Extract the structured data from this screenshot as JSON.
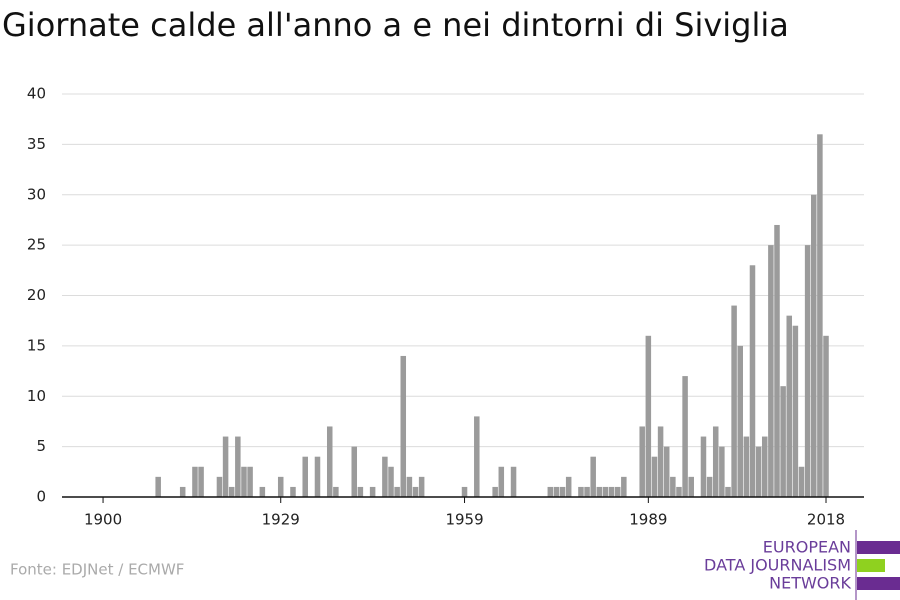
{
  "chart_data": {
    "type": "bar",
    "title": "Giornate calde all'anno a e nei dintorni di Siviglia",
    "source": "Fonte: EDJNet / ECMWF",
    "logo": [
      "EUROPEAN",
      "DATA JOURNALISM",
      "NETWORK"
    ],
    "color": "#9b9b9b",
    "x": [
      1909,
      1913,
      1915,
      1916,
      1919,
      1920,
      1921,
      1922,
      1923,
      1924,
      1926,
      1929,
      1931,
      1933,
      1935,
      1937,
      1938,
      1941,
      1942,
      1944,
      1946,
      1947,
      1948,
      1949,
      1950,
      1951,
      1952,
      1959,
      1961,
      1964,
      1965,
      1967,
      1973,
      1974,
      1975,
      1976,
      1978,
      1979,
      1980,
      1981,
      1982,
      1983,
      1984,
      1985,
      1988,
      1989,
      1990,
      1991,
      1992,
      1993,
      1994,
      1995,
      1996,
      1998,
      1999,
      2000,
      2001,
      2002,
      2003,
      2004,
      2005,
      2006,
      2007,
      2008,
      2009,
      2010,
      2011,
      2012,
      2013,
      2014,
      2015,
      2016,
      2017,
      2018
    ],
    "values": [
      2,
      1,
      3,
      3,
      2,
      6,
      1,
      6,
      3,
      3,
      1,
      2,
      1,
      4,
      4,
      7,
      1,
      5,
      1,
      1,
      4,
      3,
      1,
      14,
      2,
      1,
      2,
      1,
      8,
      1,
      3,
      3,
      1,
      1,
      1,
      2,
      1,
      1,
      4,
      1,
      1,
      1,
      1,
      2,
      7,
      16,
      4,
      7,
      5,
      2,
      1,
      12,
      2,
      6,
      2,
      7,
      5,
      1,
      19,
      15,
      6,
      23,
      5,
      6,
      25,
      27,
      11,
      18,
      17,
      3,
      25,
      30,
      36,
      16
    ],
    "xlim": [
      1893.3,
      2024.2
    ],
    "xticks": [
      1900,
      1929,
      1959,
      1989,
      2018
    ],
    "ylim": [
      0,
      40
    ],
    "yticks": [
      0,
      5,
      10,
      15,
      20,
      25,
      30,
      35,
      40
    ],
    "grid": true
  }
}
